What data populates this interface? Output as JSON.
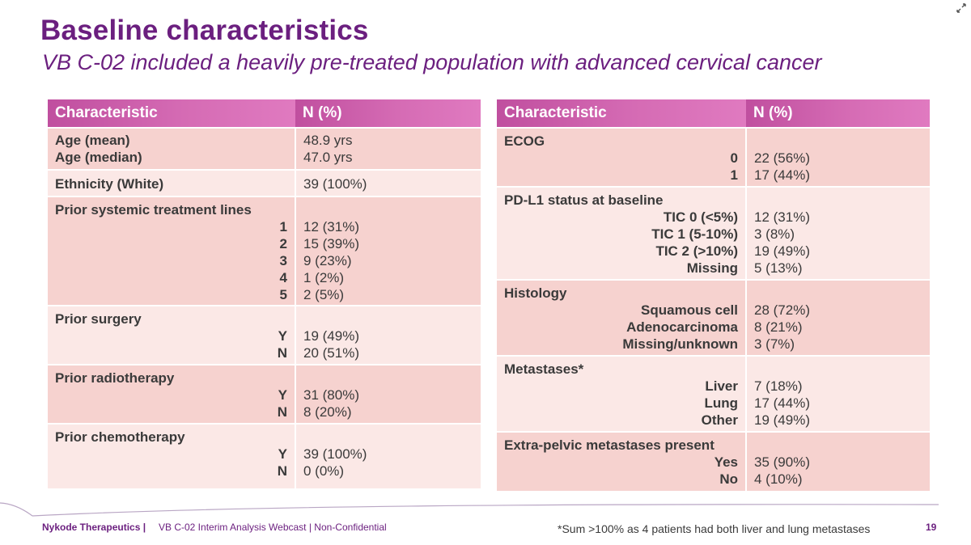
{
  "slide": {
    "title": "Baseline characteristics",
    "subtitle": "VB C-02 included a heavily pre-treated population with advanced cervical cancer"
  },
  "left_table": {
    "col1": "Characteristic",
    "col2": "N (%)",
    "age_mean_label": "Age (mean)",
    "age_median_label": "Age (median)",
    "age_mean_value": "48.9 yrs",
    "age_median_value": "47.0 yrs",
    "ethnicity_label": "Ethnicity (White)",
    "ethnicity_value": "39 (100%)",
    "prior_lines": {
      "label": "Prior systemic treatment lines",
      "rows": [
        {
          "k": "1",
          "v": "12 (31%)"
        },
        {
          "k": "2",
          "v": "15 (39%)"
        },
        {
          "k": "3",
          "v": "9 (23%)"
        },
        {
          "k": "4",
          "v": "1 (2%)"
        },
        {
          "k": "5",
          "v": "2 (5%)"
        }
      ]
    },
    "prior_surgery": {
      "label": "Prior surgery",
      "rows": [
        {
          "k": "Y",
          "v": "19 (49%)"
        },
        {
          "k": "N",
          "v": "20 (51%)"
        }
      ]
    },
    "prior_radiotherapy": {
      "label": "Prior radiotherapy",
      "rows": [
        {
          "k": "Y",
          "v": "31 (80%)"
        },
        {
          "k": "N",
          "v": "8 (20%)"
        }
      ]
    },
    "prior_chemotherapy": {
      "label": "Prior chemotherapy",
      "rows": [
        {
          "k": "Y",
          "v": "39 (100%)"
        },
        {
          "k": "N",
          "v": "0 (0%)"
        }
      ]
    }
  },
  "right_table": {
    "col1": "Characteristic",
    "col2": "N (%)",
    "ecog": {
      "label": "ECOG",
      "rows": [
        {
          "k": "0",
          "v": "22 (56%)"
        },
        {
          "k": "1",
          "v": "17 (44%)"
        }
      ]
    },
    "pdl1": {
      "label": "PD-L1 status at baseline",
      "rows": [
        {
          "k": "TIC 0 (<5%)",
          "v": "12 (31%)"
        },
        {
          "k": "TIC 1 (5-10%)",
          "v": "3 (8%)"
        },
        {
          "k": "TIC 2 (>10%)",
          "v": "19 (49%)"
        },
        {
          "k": "Missing",
          "v": "5 (13%)"
        }
      ]
    },
    "histology": {
      "label": "Histology",
      "rows": [
        {
          "k": "Squamous cell",
          "v": "28 (72%)"
        },
        {
          "k": "Adenocarcinoma",
          "v": "8 (21%)"
        },
        {
          "k": "Missing/unknown",
          "v": "3 (7%)"
        }
      ]
    },
    "metastases": {
      "label": "Metastases*",
      "rows": [
        {
          "k": "Liver",
          "v": "7 (18%)"
        },
        {
          "k": "Lung",
          "v": "17 (44%)"
        },
        {
          "k": "Other",
          "v": "19 (49%)"
        }
      ]
    },
    "extrapelvic": {
      "label": "Extra-pelvic metastases present",
      "rows": [
        {
          "k": "Yes",
          "v": "35 (90%)"
        },
        {
          "k": "No",
          "v": "4 (10%)"
        }
      ]
    }
  },
  "footer": {
    "company": "Nykode Therapeutics |",
    "text": "VB C-02 Interim Analysis Webcast | Non-Confidential",
    "footnote": "*Sum >100% as 4 patients had both liver and lung metastases",
    "page": "19"
  },
  "colors": {
    "title": "#6b1f7f",
    "header_gradient_start": "#c04f9f",
    "header_gradient_end": "#e07ac0",
    "row_dark": "#f6d2cf",
    "row_light": "#fbe8e6"
  },
  "icons": {
    "expand": "expand-arrows-icon"
  }
}
